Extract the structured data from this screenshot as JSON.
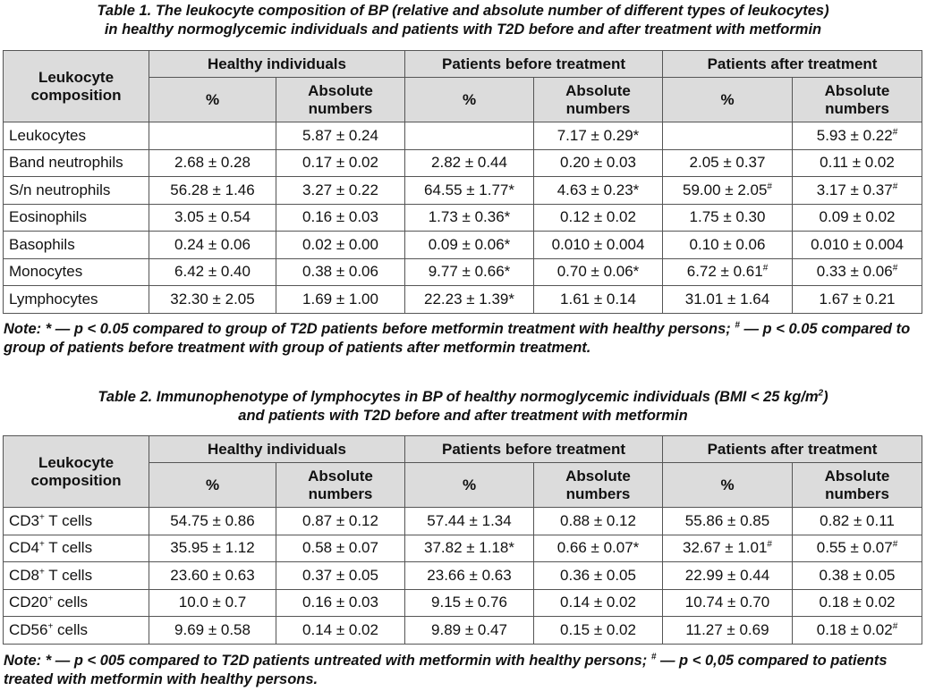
{
  "table1": {
    "caption_line1": "Table 1. The leukocyte composition of BP (relative and absolute number of different types of leukocytes)",
    "caption_line2": "in healthy normoglycemic individuals and patients with T2D before and after treatment with metformin",
    "row_header": "Leukocyte composition",
    "groups": [
      "Healthy individuals",
      "Patients before treatment",
      "Patients after treatment"
    ],
    "subheaders": [
      "%",
      "Absolute numbers",
      "%",
      "Absolute numbers",
      "%",
      "Absolute numbers"
    ],
    "rows": [
      {
        "label": "Leukocytes",
        "cells": [
          {
            "v": "",
            "m": ""
          },
          {
            "v": "5.87 ± 0.24",
            "m": ""
          },
          {
            "v": "",
            "m": ""
          },
          {
            "v": "7.17 ± 0.29",
            "m": "*"
          },
          {
            "v": "",
            "m": ""
          },
          {
            "v": "5.93 ± 0.22",
            "m": "#"
          }
        ]
      },
      {
        "label": "Band neutrophils",
        "cells": [
          {
            "v": "2.68 ± 0.28",
            "m": ""
          },
          {
            "v": "0.17 ± 0.02",
            "m": ""
          },
          {
            "v": "2.82 ± 0.44",
            "m": ""
          },
          {
            "v": "0.20 ± 0.03",
            "m": ""
          },
          {
            "v": "2.05 ± 0.37",
            "m": ""
          },
          {
            "v": "0.11 ± 0.02",
            "m": ""
          }
        ]
      },
      {
        "label": "S/n neutrophils",
        "cells": [
          {
            "v": "56.28 ± 1.46",
            "m": ""
          },
          {
            "v": "3.27 ± 0.22",
            "m": ""
          },
          {
            "v": "64.55 ± 1.77",
            "m": "*"
          },
          {
            "v": "4.63 ± 0.23",
            "m": "*"
          },
          {
            "v": "59.00 ± 2.05",
            "m": "#"
          },
          {
            "v": "3.17 ± 0.37",
            "m": "#"
          }
        ]
      },
      {
        "label": "Eosinophils",
        "cells": [
          {
            "v": "3.05 ± 0.54",
            "m": ""
          },
          {
            "v": "0.16 ± 0.03",
            "m": ""
          },
          {
            "v": "1.73 ± 0.36",
            "m": "*"
          },
          {
            "v": "0.12 ± 0.02",
            "m": ""
          },
          {
            "v": "1.75 ± 0.30",
            "m": ""
          },
          {
            "v": "0.09 ± 0.02",
            "m": ""
          }
        ]
      },
      {
        "label": "Basophils",
        "cells": [
          {
            "v": "0.24 ± 0.06",
            "m": ""
          },
          {
            "v": "0.02 ± 0.00",
            "m": ""
          },
          {
            "v": "0.09 ± 0.06",
            "m": "*"
          },
          {
            "v": "0.010 ± 0.004",
            "m": ""
          },
          {
            "v": "0.10 ± 0.06",
            "m": ""
          },
          {
            "v": "0.010 ± 0.004",
            "m": ""
          }
        ]
      },
      {
        "label": "Monocytes",
        "cells": [
          {
            "v": "6.42 ± 0.40",
            "m": ""
          },
          {
            "v": "0.38 ± 0.06",
            "m": ""
          },
          {
            "v": "9.77 ± 0.66",
            "m": "*"
          },
          {
            "v": "0.70 ± 0.06",
            "m": "*"
          },
          {
            "v": "6.72 ± 0.61",
            "m": "#"
          },
          {
            "v": "0.33 ± 0.06",
            "m": "#"
          }
        ]
      },
      {
        "label": "Lymphocytes",
        "cells": [
          {
            "v": "32.30 ± 2.05",
            "m": ""
          },
          {
            "v": "1.69 ± 1.00",
            "m": ""
          },
          {
            "v": "22.23 ± 1.39",
            "m": "*"
          },
          {
            "v": "1.61 ± 0.14",
            "m": ""
          },
          {
            "v": "31.01 ± 1.64",
            "m": ""
          },
          {
            "v": "1.67 ± 0.21",
            "m": ""
          }
        ]
      }
    ],
    "note_a": "Note: * — p < 0.05 compared to group of T2D patients before metformin treatment with healthy persons; ",
    "note_sup": "#",
    "note_b": " — p < 0.05 compared to group of patients before treatment with group of patients after metformin treatment."
  },
  "table2": {
    "caption_line1_a": "Table 2. Immunophenotype of lymphocytes in BP of healthy normoglycemic individuals (BMI < 25 kg/m",
    "caption_line1_sup": "2",
    "caption_line1_b": ")",
    "caption_line2": "and patients with T2D before and after treatment with metformin",
    "row_header": "Leukocyte composition",
    "groups": [
      "Healthy individuals",
      "Patients before treatment",
      "Patients after treatment"
    ],
    "subheaders": [
      "%",
      "Absolute numbers",
      "%",
      "Absolute numbers",
      "%",
      "Absolute numbers"
    ],
    "rows": [
      {
        "label": "CD3",
        "label_sup": "+",
        "label_rest": " T cells",
        "cells": [
          {
            "v": "54.75 ± 0.86",
            "m": ""
          },
          {
            "v": "0.87 ± 0.12",
            "m": ""
          },
          {
            "v": "57.44 ± 1.34",
            "m": ""
          },
          {
            "v": "0.88 ± 0.12",
            "m": ""
          },
          {
            "v": "55.86 ± 0.85",
            "m": ""
          },
          {
            "v": "0.82 ± 0.11",
            "m": ""
          }
        ]
      },
      {
        "label": "CD4",
        "label_sup": "+",
        "label_rest": " T cells",
        "cells": [
          {
            "v": "35.95 ± 1.12",
            "m": ""
          },
          {
            "v": "0.58 ± 0.07",
            "m": ""
          },
          {
            "v": "37.82 ± 1.18",
            "m": "*"
          },
          {
            "v": "0.66 ± 0.07",
            "m": "*"
          },
          {
            "v": "32.67 ± 1.01",
            "m": "#"
          },
          {
            "v": "0.55 ± 0.07",
            "m": "#"
          }
        ]
      },
      {
        "label": "CD8",
        "label_sup": "+",
        "label_rest": " T cells",
        "cells": [
          {
            "v": "23.60 ± 0.63",
            "m": ""
          },
          {
            "v": "0.37 ± 0.05",
            "m": ""
          },
          {
            "v": "23.66 ± 0.63",
            "m": ""
          },
          {
            "v": "0.36 ± 0.05",
            "m": ""
          },
          {
            "v": "22.99 ± 0.44",
            "m": ""
          },
          {
            "v": "0.38 ± 0.05",
            "m": ""
          }
        ]
      },
      {
        "label": "CD20",
        "label_sup": "+",
        "label_rest": " cells",
        "cells": [
          {
            "v": "10.0 ± 0.7",
            "m": ""
          },
          {
            "v": "0.16 ± 0.03",
            "m": ""
          },
          {
            "v": "9.15 ± 0.76",
            "m": ""
          },
          {
            "v": "0.14 ± 0.02",
            "m": ""
          },
          {
            "v": "10.74 ± 0.70",
            "m": ""
          },
          {
            "v": "0.18 ± 0.02",
            "m": ""
          }
        ]
      },
      {
        "label": "CD56",
        "label_sup": "+",
        "label_rest": " cells",
        "cells": [
          {
            "v": "9.69 ± 0.58",
            "m": ""
          },
          {
            "v": "0.14 ± 0.02",
            "m": ""
          },
          {
            "v": "9.89 ± 0.47",
            "m": ""
          },
          {
            "v": "0.15 ± 0.02",
            "m": ""
          },
          {
            "v": "11.27 ± 0.69",
            "m": ""
          },
          {
            "v": "0.18 ± 0.02",
            "m": "#"
          }
        ]
      }
    ],
    "note_a": "Note: * — p < 005 compared to T2D patients untreated with metformin with healthy persons; ",
    "note_sup": "#",
    "note_b": " — p < 0,05 compared to patients treated with metformin with healthy persons."
  }
}
